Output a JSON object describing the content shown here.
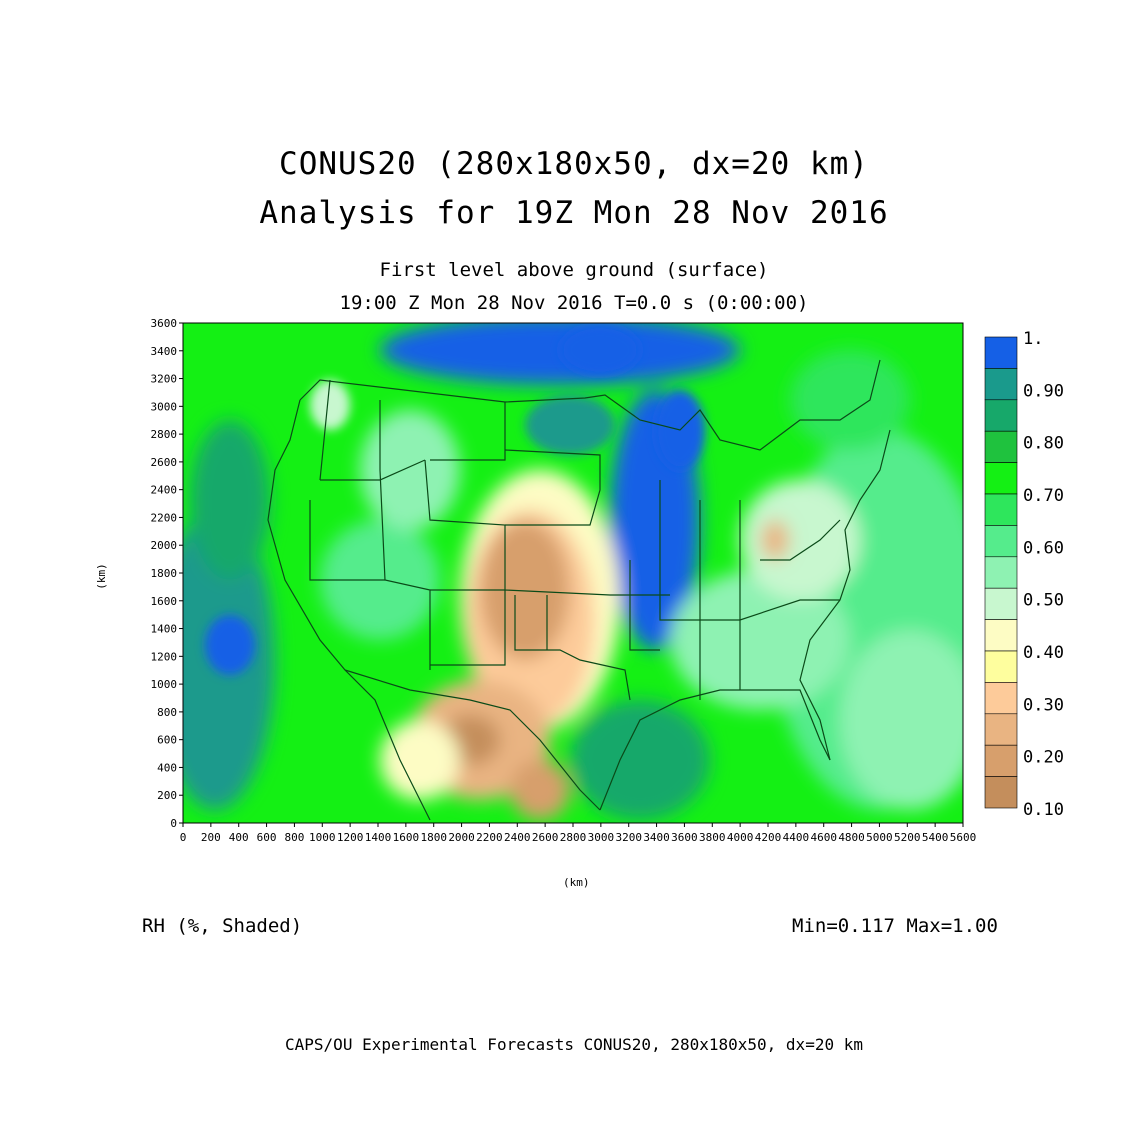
{
  "titles": {
    "line1": "CONUS20 (280x180x50, dx=20 km)",
    "line2": "Analysis for 19Z Mon 28 Nov 2016",
    "level": "First level above ground (surface)",
    "time": "19:00 Z Mon 28 Nov 2016    T=0.0 s (0:00:00)"
  },
  "axes": {
    "xlabel": "(km)",
    "ylabel": "(km)",
    "xticks": [
      0,
      200,
      400,
      600,
      800,
      1000,
      1200,
      1400,
      1600,
      1800,
      2000,
      2200,
      2400,
      2600,
      2800,
      3000,
      3200,
      3400,
      3600,
      3800,
      4000,
      4200,
      4400,
      4600,
      4800,
      5000,
      5200,
      5400,
      5600
    ],
    "yticks": [
      0,
      200,
      400,
      600,
      800,
      1000,
      1200,
      1400,
      1600,
      1800,
      2000,
      2200,
      2400,
      2600,
      2800,
      3000,
      3200,
      3400,
      3600
    ],
    "xlim": [
      0,
      5600
    ],
    "ylim": [
      0,
      3600
    ]
  },
  "legend": {
    "labels": [
      "1.",
      "0.90",
      "0.80",
      "0.70",
      "0.60",
      "0.50",
      "0.40",
      "0.30",
      "0.20",
      "0.10"
    ],
    "colors": [
      "#1560e6",
      "#1a9a8c",
      "#17a86a",
      "#1fc23e",
      "#14f014",
      "#2ee65c",
      "#55ec8c",
      "#8ef2b2",
      "#c8f7cf",
      "#fdfcc4",
      "#fefe9e",
      "#fdcb9a",
      "#e9b482",
      "#d79f6c",
      "#c48e5c"
    ]
  },
  "field": {
    "name": "RH (%, Shaded)",
    "minmax": "Min=0.117 Max=1.00"
  },
  "footer": "CAPS/OU Experimental Forecasts  CONUS20, 280x180x50, dx=20 km"
}
